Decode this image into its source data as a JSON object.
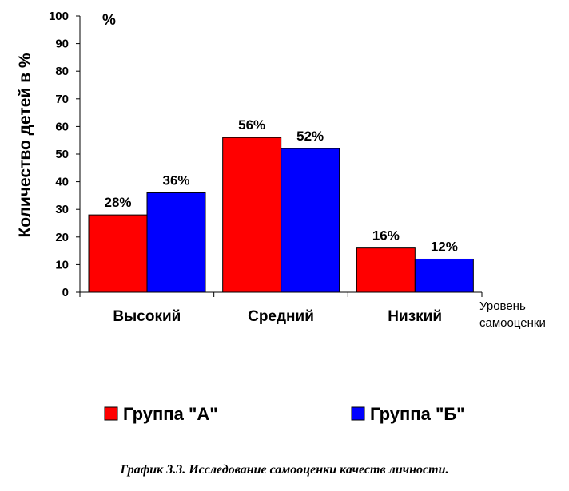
{
  "chart_data": {
    "type": "bar",
    "categories": [
      "Высокий",
      "Средний",
      "Низкий"
    ],
    "series": [
      {
        "name": "Группа \"А\"",
        "values": [
          28,
          56,
          16
        ],
        "labels": [
          "28%",
          "56%",
          "16%"
        ],
        "color": "#ff0000"
      },
      {
        "name": "Группа \"Б\"",
        "values": [
          36,
          52,
          12
        ],
        "labels": [
          "36%",
          "52%",
          "12%"
        ],
        "color": "#0000ff"
      }
    ],
    "ylabel": "Количество детей в %",
    "y_unit": "%",
    "xlabel_line1": "Уровень",
    "xlabel_line2": "самооценки",
    "ylim": [
      0,
      100
    ],
    "yticks": [
      0,
      10,
      20,
      30,
      40,
      50,
      60,
      70,
      80,
      90,
      100
    ],
    "grid": false,
    "legend": "bottom"
  },
  "caption": "График 3.3. Исследование самооценки качеств личности."
}
